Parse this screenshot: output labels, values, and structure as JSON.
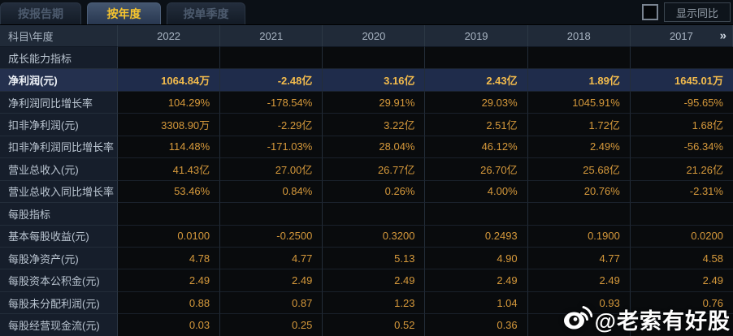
{
  "tabs": {
    "items": [
      {
        "label": "按报告期",
        "active": false
      },
      {
        "label": "按年度",
        "active": true
      },
      {
        "label": "按单季度",
        "active": false
      }
    ]
  },
  "controls": {
    "show_yoy_label": "显示同比"
  },
  "table": {
    "header": {
      "label": "科目\\年度",
      "years": [
        "2022",
        "2021",
        "2020",
        "2019",
        "2018",
        "2017"
      ],
      "more_icon": "»"
    },
    "rows": [
      {
        "type": "section",
        "label": "成长能力指标",
        "values": [
          "",
          "",
          "",
          "",
          "",
          ""
        ]
      },
      {
        "type": "highlight",
        "label": "净利润(元)",
        "values": [
          "1064.84万",
          "-2.48亿",
          "3.16亿",
          "2.43亿",
          "1.89亿",
          "1645.01万"
        ]
      },
      {
        "type": "data",
        "label": "净利润同比增长率",
        "values": [
          "104.29%",
          "-178.54%",
          "29.91%",
          "29.03%",
          "1045.91%",
          "-95.65%"
        ]
      },
      {
        "type": "data",
        "label": "扣非净利润(元)",
        "values": [
          "3308.90万",
          "-2.29亿",
          "3.22亿",
          "2.51亿",
          "1.72亿",
          "1.68亿"
        ]
      },
      {
        "type": "data",
        "label": "扣非净利润同比增长率",
        "values": [
          "114.48%",
          "-171.03%",
          "28.04%",
          "46.12%",
          "2.49%",
          "-56.34%"
        ]
      },
      {
        "type": "data",
        "label": "营业总收入(元)",
        "values": [
          "41.43亿",
          "27.00亿",
          "26.77亿",
          "26.70亿",
          "25.68亿",
          "21.26亿"
        ]
      },
      {
        "type": "data",
        "label": "营业总收入同比增长率",
        "values": [
          "53.46%",
          "0.84%",
          "0.26%",
          "4.00%",
          "20.76%",
          "-2.31%"
        ]
      },
      {
        "type": "section",
        "label": "每股指标",
        "values": [
          "",
          "",
          "",
          "",
          "",
          ""
        ]
      },
      {
        "type": "data",
        "label": "基本每股收益(元)",
        "values": [
          "0.0100",
          "-0.2500",
          "0.3200",
          "0.2493",
          "0.1900",
          "0.0200"
        ]
      },
      {
        "type": "data",
        "label": "每股净资产(元)",
        "values": [
          "4.78",
          "4.77",
          "5.13",
          "4.90",
          "4.77",
          "4.58"
        ]
      },
      {
        "type": "data",
        "label": "每股资本公积金(元)",
        "values": [
          "2.49",
          "2.49",
          "2.49",
          "2.49",
          "2.49",
          "2.49"
        ]
      },
      {
        "type": "data",
        "label": "每股未分配利润(元)",
        "values": [
          "0.88",
          "0.87",
          "1.23",
          "1.04",
          "0.93",
          "0.76"
        ]
      },
      {
        "type": "data",
        "label": "每股经营现金流(元)",
        "values": [
          "0.03",
          "0.25",
          "0.52",
          "0.36",
          "",
          ""
        ]
      }
    ]
  },
  "watermark": {
    "text": "@老索有好股",
    "icon": "weibo-icon"
  },
  "colors": {
    "accent_gold": "#f7c52e",
    "value_orange": "#d6993b",
    "highlight_value": "#f4bc4c",
    "highlight_row_bg": "#1f2c4b",
    "header_bg": "#202a38",
    "label_col_bg": "#161e2b"
  }
}
